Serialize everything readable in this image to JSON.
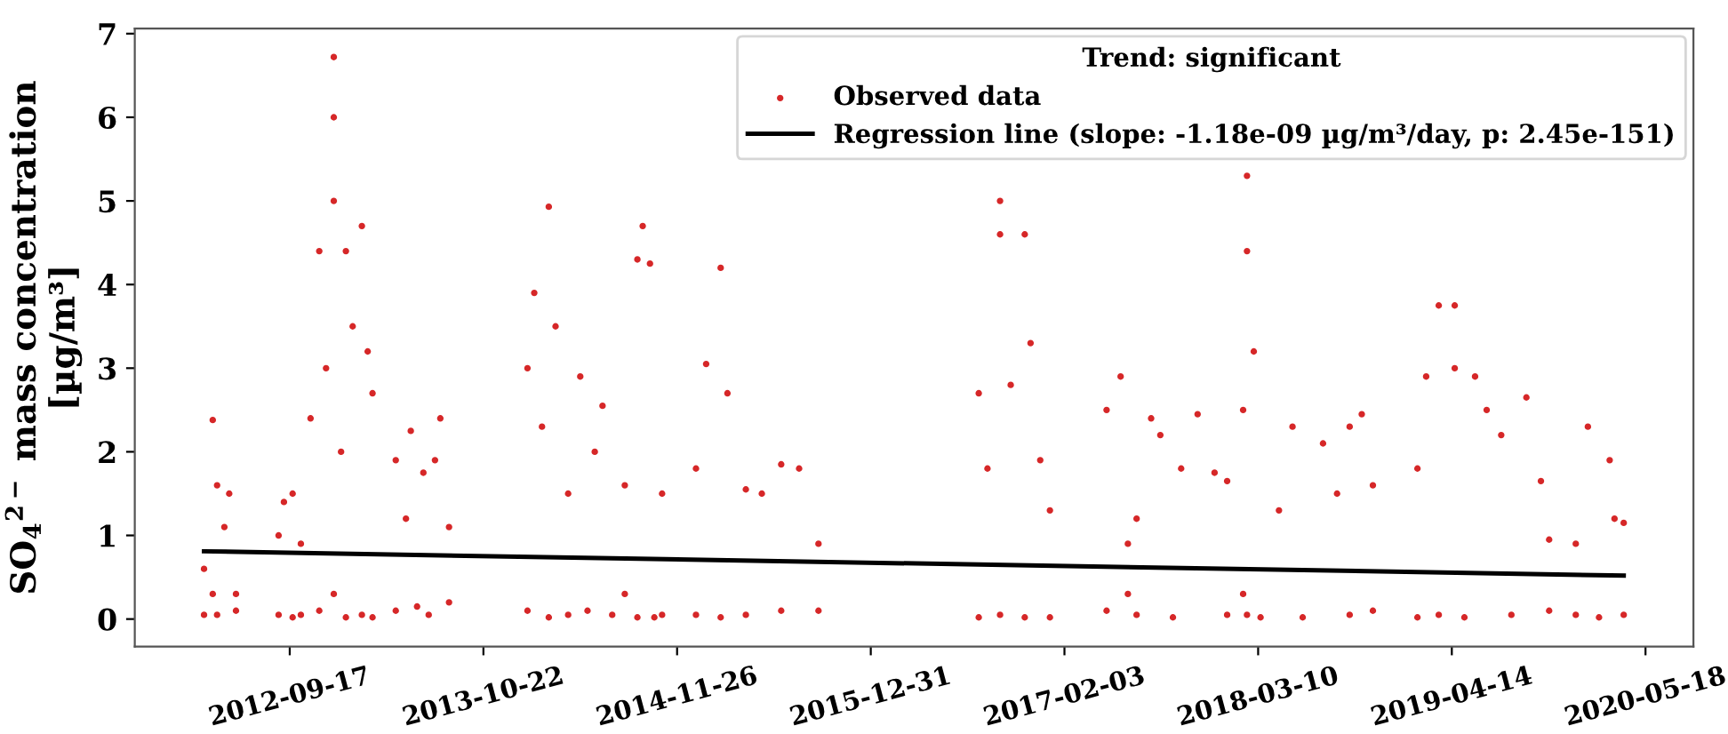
{
  "chart_data": {
    "type": "scatter",
    "ylabel": "SO$_{4}$$^{2−}$ mass concentration\n[µg/m³]",
    "legend_title": "Trend: significant",
    "legend": "top right",
    "grid": false,
    "xlim": [
      "2011-11-02",
      "2020-08-25"
    ],
    "xticks": [
      "2012-09-17",
      "2013-10-22",
      "2014-11-26",
      "2015-12-31",
      "2017-02-03",
      "2018-03-10",
      "2019-04-14",
      "2020-05-18"
    ],
    "ylim": [
      -0.33,
      7.06
    ],
    "yticks": [
      0,
      1,
      2,
      3,
      4,
      5,
      6,
      7
    ],
    "series": [
      {
        "name": "Observed data",
        "marker": "circle",
        "color": "#d62728",
        "x": [
          "2012-03-24",
          "2012-03-24",
          "2012-04-11",
          "2012-04-11",
          "2012-04-20",
          "2012-04-20",
          "2012-05-05",
          "2012-05-15",
          "2012-05-29",
          "2012-05-29",
          "2012-08-25",
          "2012-08-25",
          "2012-09-05",
          "2012-09-23",
          "2012-09-23",
          "2012-10-10",
          "2012-10-10",
          "2012-10-30",
          "2012-11-17",
          "2012-11-17",
          "2012-12-01",
          "2012-12-17",
          "2012-12-17",
          "2012-12-17",
          "2012-12-17",
          "2013-01-01",
          "2013-01-11",
          "2013-01-11",
          "2013-01-25",
          "2013-02-13",
          "2013-02-13",
          "2013-02-25",
          "2013-03-07",
          "2013-03-07",
          "2013-04-24",
          "2013-04-24",
          "2013-05-15",
          "2013-05-25",
          "2013-06-07",
          "2013-06-20",
          "2013-07-01",
          "2013-07-14",
          "2013-07-25",
          "2013-08-12",
          "2013-08-12",
          "2014-01-21",
          "2014-01-21",
          "2014-02-04",
          "2014-02-20",
          "2014-03-06",
          "2014-03-06",
          "2014-03-20",
          "2014-04-15",
          "2014-04-15",
          "2014-05-10",
          "2014-05-25",
          "2014-06-09",
          "2014-06-25",
          "2014-07-15",
          "2014-08-10",
          "2014-08-10",
          "2014-09-05",
          "2014-09-05",
          "2014-09-16",
          "2014-10-01",
          "2014-10-10",
          "2014-10-26",
          "2014-10-26",
          "2015-01-04",
          "2015-01-04",
          "2015-01-25",
          "2015-02-24",
          "2015-02-24",
          "2015-03-10",
          "2015-04-17",
          "2015-04-17",
          "2015-05-20",
          "2015-06-29",
          "2015-06-29",
          "2015-08-05",
          "2015-09-14",
          "2015-09-14",
          "2016-08-10",
          "2016-08-10",
          "2016-08-28",
          "2016-09-23",
          "2016-09-23",
          "2016-09-23",
          "2016-10-15",
          "2016-11-13",
          "2016-11-13",
          "2016-11-25",
          "2016-12-15",
          "2017-01-04",
          "2017-01-04",
          "2017-05-01",
          "2017-05-01",
          "2017-05-30",
          "2017-06-14",
          "2017-06-14",
          "2017-07-02",
          "2017-07-02",
          "2017-08-01",
          "2017-08-20",
          "2017-09-15",
          "2017-10-02",
          "2017-11-05",
          "2017-12-10",
          "2018-01-05",
          "2018-01-05",
          "2018-02-07",
          "2018-02-07",
          "2018-02-15",
          "2018-02-15",
          "2018-02-15",
          "2018-03-01",
          "2018-03-15",
          "2018-04-22",
          "2018-05-20",
          "2018-06-10",
          "2018-07-22",
          "2018-08-20",
          "2018-09-15",
          "2018-09-15",
          "2018-10-10",
          "2018-11-02",
          "2018-11-02",
          "2019-02-02",
          "2019-02-02",
          "2019-02-20",
          "2019-03-18",
          "2019-03-18",
          "2019-04-20",
          "2019-04-20",
          "2019-05-10",
          "2019-06-01",
          "2019-06-25",
          "2019-07-25",
          "2019-08-15",
          "2019-09-15",
          "2019-10-15",
          "2019-11-01",
          "2019-11-01",
          "2019-12-26",
          "2019-12-26",
          "2020-01-20",
          "2020-02-12",
          "2020-03-05",
          "2020-03-15",
          "2020-04-03",
          "2020-04-03"
        ],
        "values": [
          0.05,
          0.6,
          2.38,
          0.3,
          1.6,
          0.05,
          1.1,
          1.5,
          0.3,
          0.1,
          0.05,
          1.0,
          1.4,
          0.02,
          1.5,
          0.9,
          0.05,
          2.4,
          4.4,
          0.1,
          3.0,
          6.72,
          6.0,
          5.0,
          0.3,
          2.0,
          4.4,
          0.02,
          3.5,
          4.7,
          0.05,
          3.2,
          2.7,
          0.02,
          0.1,
          1.9,
          1.2,
          2.25,
          0.15,
          1.75,
          0.05,
          1.9,
          2.4,
          0.2,
          1.1,
          3.0,
          0.1,
          3.9,
          2.3,
          4.93,
          0.02,
          3.5,
          1.5,
          0.05,
          2.9,
          0.1,
          2.0,
          2.55,
          0.05,
          1.6,
          0.3,
          4.3,
          0.02,
          4.7,
          4.25,
          0.02,
          1.5,
          0.05,
          1.8,
          0.05,
          3.05,
          4.2,
          0.02,
          2.7,
          1.55,
          0.05,
          1.5,
          1.85,
          0.1,
          1.8,
          0.9,
          0.1,
          2.7,
          0.02,
          1.8,
          5.0,
          4.6,
          0.05,
          2.8,
          4.6,
          0.02,
          3.3,
          1.9,
          1.3,
          0.02,
          2.5,
          0.1,
          2.9,
          0.3,
          0.9,
          0.05,
          1.2,
          2.4,
          2.2,
          0.02,
          1.8,
          2.45,
          1.75,
          0.05,
          1.65,
          0.3,
          2.5,
          5.3,
          4.4,
          0.05,
          3.2,
          0.02,
          1.3,
          2.3,
          0.02,
          2.1,
          1.5,
          2.3,
          0.05,
          2.45,
          1.6,
          0.1,
          1.8,
          0.02,
          2.9,
          3.75,
          0.05,
          3.75,
          3.0,
          0.02,
          2.9,
          2.5,
          2.2,
          0.05,
          2.65,
          1.65,
          0.1,
          0.95,
          0.05,
          0.9,
          2.3,
          0.02,
          1.9,
          1.2,
          0.05,
          1.15
        ]
      },
      {
        "name": "Regression line (slope: -1.18e-09 µg/m³/day, p: 2.45e-151)",
        "type": "line",
        "color": "#000000",
        "line_style": "solid",
        "x": [
          "2012-03-24",
          "2020-04-03"
        ],
        "values": [
          0.81,
          0.52
        ]
      }
    ]
  }
}
